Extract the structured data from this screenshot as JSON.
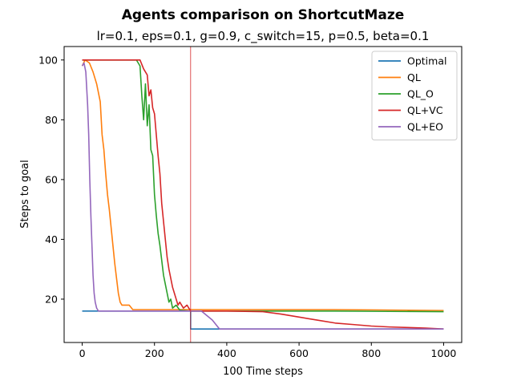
{
  "chart_data": {
    "type": "line",
    "title": "Agents comparison on ShortcutMaze",
    "subtitle": "lr=0.1, eps=0.1, g=0.9, c_switch=15, p=0.5, beta=0.1",
    "xlabel": "100 Time steps",
    "ylabel": "Steps to goal",
    "xlim": [
      -50,
      1050
    ],
    "ylim": [
      5.5,
      104.5
    ],
    "xticks": [
      0,
      200,
      400,
      600,
      800,
      1000
    ],
    "yticks": [
      20,
      40,
      60,
      80,
      100
    ],
    "grid": false,
    "legend_position": "top-right",
    "vline": {
      "x": 300,
      "color": "#d62728"
    },
    "series": [
      {
        "name": "Optimal",
        "color": "#1f77b4",
        "points": [
          [
            0,
            16
          ],
          [
            300,
            16
          ],
          [
            300,
            10
          ],
          [
            1000,
            10
          ]
        ]
      },
      {
        "name": "QL",
        "color": "#ff7f0e",
        "points": [
          [
            0,
            98
          ],
          [
            8,
            100
          ],
          [
            20,
            99
          ],
          [
            30,
            96
          ],
          [
            40,
            92
          ],
          [
            50,
            86
          ],
          [
            55,
            75
          ],
          [
            60,
            70
          ],
          [
            65,
            62
          ],
          [
            70,
            55
          ],
          [
            75,
            50
          ],
          [
            80,
            44
          ],
          [
            85,
            38
          ],
          [
            90,
            32
          ],
          [
            95,
            27
          ],
          [
            100,
            22
          ],
          [
            105,
            19
          ],
          [
            110,
            18
          ],
          [
            130,
            18
          ],
          [
            140,
            16.5
          ],
          [
            300,
            16.5
          ],
          [
            400,
            16.5
          ],
          [
            700,
            16.5
          ],
          [
            1000,
            16.2
          ]
        ]
      },
      {
        "name": "QL_O",
        "color": "#2ca02c",
        "points": [
          [
            0,
            100
          ],
          [
            150,
            100
          ],
          [
            160,
            98
          ],
          [
            165,
            88
          ],
          [
            170,
            80
          ],
          [
            175,
            92
          ],
          [
            180,
            78
          ],
          [
            185,
            85
          ],
          [
            190,
            70
          ],
          [
            195,
            68
          ],
          [
            200,
            55
          ],
          [
            205,
            48
          ],
          [
            210,
            42
          ],
          [
            215,
            38
          ],
          [
            220,
            33
          ],
          [
            225,
            28
          ],
          [
            230,
            25
          ],
          [
            235,
            22
          ],
          [
            240,
            19
          ],
          [
            245,
            20
          ],
          [
            250,
            17
          ],
          [
            260,
            18
          ],
          [
            270,
            16.3
          ],
          [
            300,
            16
          ],
          [
            500,
            16
          ],
          [
            700,
            16
          ],
          [
            1000,
            15.8
          ]
        ]
      },
      {
        "name": "QL+VC",
        "color": "#d62728",
        "points": [
          [
            0,
            100
          ],
          [
            160,
            100
          ],
          [
            170,
            97
          ],
          [
            180,
            95
          ],
          [
            185,
            88
          ],
          [
            190,
            90
          ],
          [
            195,
            84
          ],
          [
            200,
            82
          ],
          [
            205,
            75
          ],
          [
            210,
            68
          ],
          [
            215,
            62
          ],
          [
            220,
            52
          ],
          [
            225,
            46
          ],
          [
            230,
            40
          ],
          [
            235,
            34
          ],
          [
            240,
            30
          ],
          [
            245,
            27
          ],
          [
            250,
            24
          ],
          [
            255,
            22
          ],
          [
            260,
            20
          ],
          [
            265,
            18
          ],
          [
            270,
            19
          ],
          [
            280,
            17
          ],
          [
            290,
            18
          ],
          [
            300,
            16
          ],
          [
            400,
            16
          ],
          [
            500,
            15.8
          ],
          [
            550,
            15
          ],
          [
            600,
            14
          ],
          [
            650,
            13
          ],
          [
            700,
            12
          ],
          [
            750,
            11.5
          ],
          [
            800,
            11
          ],
          [
            850,
            10.7
          ],
          [
            900,
            10.5
          ],
          [
            950,
            10.3
          ],
          [
            1000,
            10
          ]
        ]
      },
      {
        "name": "QL+EO",
        "color": "#9467bd",
        "points": [
          [
            0,
            98
          ],
          [
            5,
            99
          ],
          [
            10,
            96
          ],
          [
            15,
            85
          ],
          [
            18,
            75
          ],
          [
            21,
            60
          ],
          [
            24,
            48
          ],
          [
            27,
            38
          ],
          [
            30,
            28
          ],
          [
            33,
            22
          ],
          [
            36,
            19
          ],
          [
            40,
            17
          ],
          [
            45,
            16
          ],
          [
            300,
            16
          ],
          [
            330,
            16
          ],
          [
            360,
            13
          ],
          [
            380,
            10
          ],
          [
            1000,
            10
          ]
        ]
      }
    ]
  }
}
